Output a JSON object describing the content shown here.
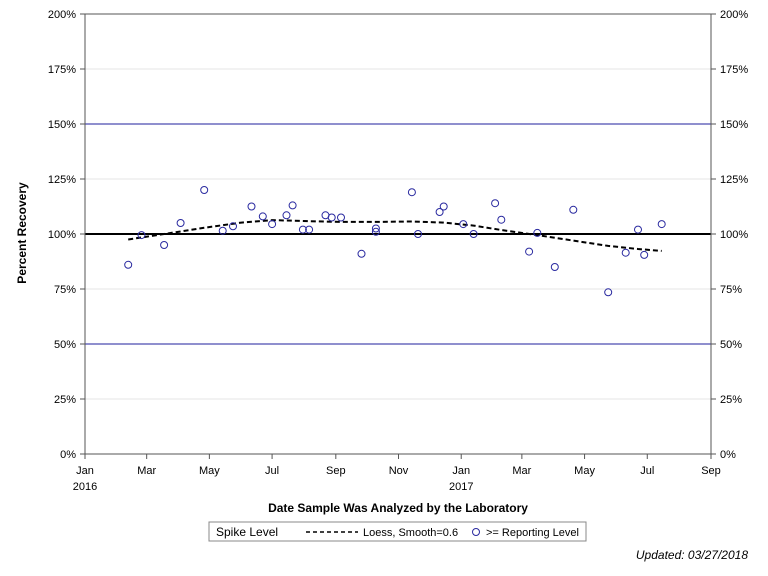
{
  "chart_data": {
    "type": "scatter",
    "title": "",
    "xlabel": "Date Sample Was Analyzed by the Laboratory",
    "ylabel": "Percent Recovery",
    "ylim": [
      0,
      200
    ],
    "xlim": [
      "2016-01-01",
      "2017-09-01"
    ],
    "y_ticks": [
      {
        "value": 0,
        "label": "0%"
      },
      {
        "value": 25,
        "label": "25%"
      },
      {
        "value": 50,
        "label": "50%"
      },
      {
        "value": 75,
        "label": "75%"
      },
      {
        "value": 100,
        "label": "100%"
      },
      {
        "value": 125,
        "label": "125%"
      },
      {
        "value": 150,
        "label": "150%"
      },
      {
        "value": 175,
        "label": "175%"
      },
      {
        "value": 200,
        "label": "200%"
      }
    ],
    "x_ticks": [
      {
        "date": "2016-01-01",
        "label": "Jan",
        "year": "2016"
      },
      {
        "date": "2016-03-01",
        "label": "Mar",
        "year": ""
      },
      {
        "date": "2016-05-01",
        "label": "May",
        "year": ""
      },
      {
        "date": "2016-07-01",
        "label": "Jul",
        "year": ""
      },
      {
        "date": "2016-09-01",
        "label": "Sep",
        "year": ""
      },
      {
        "date": "2016-11-01",
        "label": "Nov",
        "year": ""
      },
      {
        "date": "2017-01-01",
        "label": "Jan",
        "year": "2017"
      },
      {
        "date": "2017-03-01",
        "label": "Mar",
        "year": ""
      },
      {
        "date": "2017-05-01",
        "label": "May",
        "year": ""
      },
      {
        "date": "2017-07-01",
        "label": "Jul",
        "year": ""
      },
      {
        "date": "2017-09-01",
        "label": "Sep",
        "year": ""
      }
    ],
    "reference_lines": [
      {
        "y": 150,
        "color": "#1f1f9e",
        "width": 1
      },
      {
        "y": 100,
        "color": "#000000",
        "width": 2
      },
      {
        "y": 50,
        "color": "#1f1f9e",
        "width": 1
      }
    ],
    "grid": true,
    "legend_position": "bottom",
    "series": [
      {
        "name": ">= Reporting Level",
        "type": "scatter",
        "color": "#2a2aa0",
        "marker": "open-circle",
        "points": [
          {
            "x": "2016-02-12",
            "y": 86
          },
          {
            "x": "2016-02-25",
            "y": 99.5
          },
          {
            "x": "2016-03-18",
            "y": 95
          },
          {
            "x": "2016-04-03",
            "y": 105
          },
          {
            "x": "2016-04-26",
            "y": 120
          },
          {
            "x": "2016-05-14",
            "y": 101.5
          },
          {
            "x": "2016-05-24",
            "y": 103.5
          },
          {
            "x": "2016-06-11",
            "y": 112.5
          },
          {
            "x": "2016-06-22",
            "y": 108
          },
          {
            "x": "2016-07-01",
            "y": 104.5
          },
          {
            "x": "2016-07-15",
            "y": 108.5
          },
          {
            "x": "2016-07-21",
            "y": 113
          },
          {
            "x": "2016-07-31",
            "y": 102
          },
          {
            "x": "2016-08-06",
            "y": 102
          },
          {
            "x": "2016-08-22",
            "y": 108.5
          },
          {
            "x": "2016-08-28",
            "y": 107.5
          },
          {
            "x": "2016-09-06",
            "y": 107.5
          },
          {
            "x": "2016-09-26",
            "y": 91
          },
          {
            "x": "2016-10-10",
            "y": 102.5
          },
          {
            "x": "2016-10-10",
            "y": 101
          },
          {
            "x": "2016-11-14",
            "y": 119
          },
          {
            "x": "2016-11-20",
            "y": 100
          },
          {
            "x": "2016-12-11",
            "y": 110
          },
          {
            "x": "2016-12-15",
            "y": 112.5
          },
          {
            "x": "2017-01-03",
            "y": 104.5
          },
          {
            "x": "2017-01-13",
            "y": 100
          },
          {
            "x": "2017-02-03",
            "y": 114
          },
          {
            "x": "2017-02-09",
            "y": 106.5
          },
          {
            "x": "2017-03-08",
            "y": 92
          },
          {
            "x": "2017-03-16",
            "y": 100.5
          },
          {
            "x": "2017-04-02",
            "y": 85
          },
          {
            "x": "2017-04-20",
            "y": 111
          },
          {
            "x": "2017-05-24",
            "y": 73.5
          },
          {
            "x": "2017-06-10",
            "y": 91.5
          },
          {
            "x": "2017-06-22",
            "y": 102
          },
          {
            "x": "2017-06-28",
            "y": 90.5
          },
          {
            "x": "2017-07-15",
            "y": 104.5
          }
        ]
      },
      {
        "name": "Loess, Smooth=0.6",
        "type": "line",
        "color": "#000000",
        "dash": "dashed",
        "points": [
          {
            "x": "2016-02-12",
            "y": 97.5
          },
          {
            "x": "2016-03-18",
            "y": 100
          },
          {
            "x": "2016-04-26",
            "y": 102.8
          },
          {
            "x": "2016-06-01",
            "y": 105.2
          },
          {
            "x": "2016-07-01",
            "y": 106.3
          },
          {
            "x": "2016-08-06",
            "y": 105.8
          },
          {
            "x": "2016-09-06",
            "y": 105.5
          },
          {
            "x": "2016-10-10",
            "y": 105.5
          },
          {
            "x": "2016-11-14",
            "y": 105.7
          },
          {
            "x": "2016-12-15",
            "y": 105.2
          },
          {
            "x": "2017-01-13",
            "y": 103.8
          },
          {
            "x": "2017-02-09",
            "y": 101.8
          },
          {
            "x": "2017-03-16",
            "y": 99.5
          },
          {
            "x": "2017-04-20",
            "y": 97
          },
          {
            "x": "2017-05-24",
            "y": 94.6
          },
          {
            "x": "2017-06-22",
            "y": 93.2
          },
          {
            "x": "2017-07-15",
            "y": 92.3
          }
        ]
      }
    ],
    "legend": {
      "title": "Spike Level",
      "entries": [
        {
          "label": "Loess, Smooth=0.6",
          "symbol": "dashed-line"
        },
        {
          "label": ">= Reporting Level",
          "symbol": "open-circle"
        }
      ]
    },
    "footnote": "Updated: 03/27/2018"
  }
}
